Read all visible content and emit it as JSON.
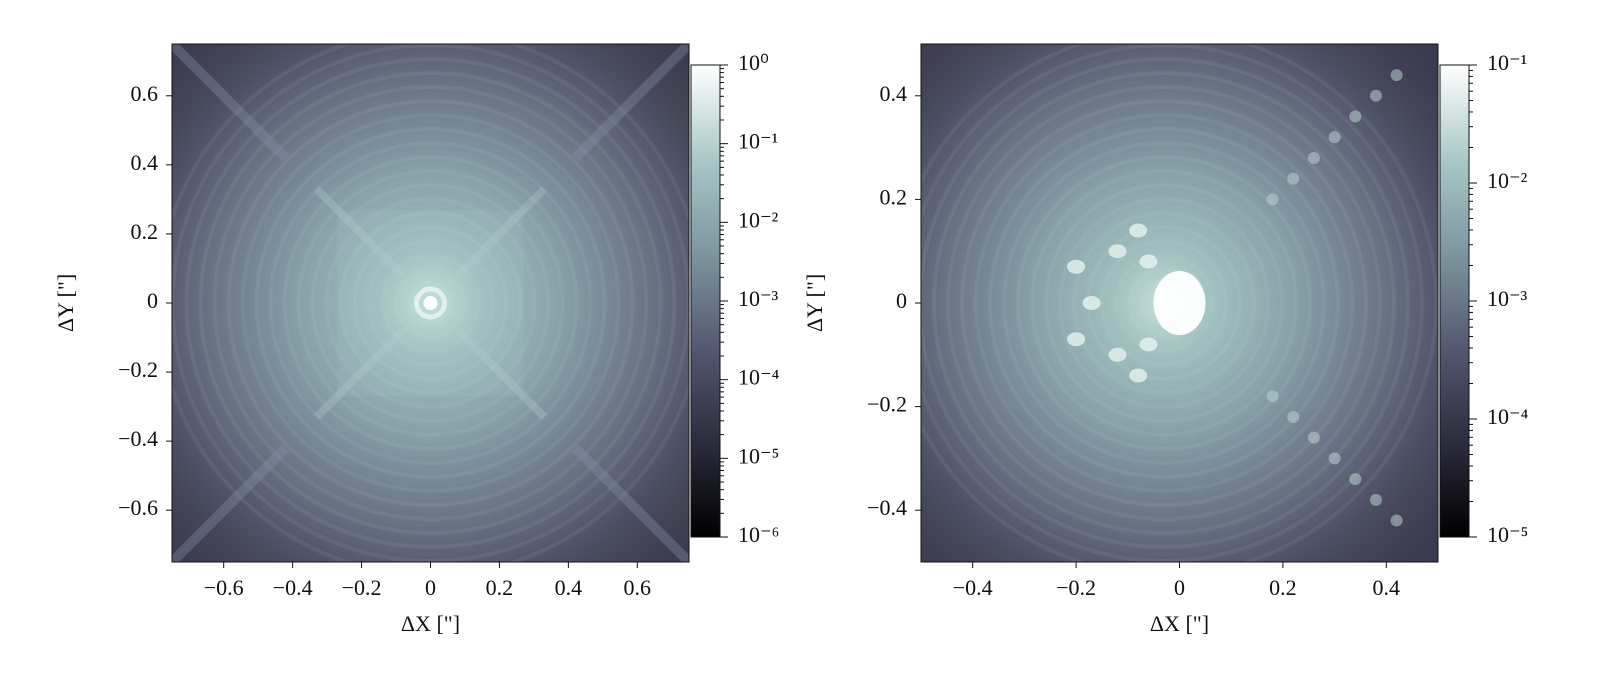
{
  "chart_data": [
    {
      "type": "heatmap",
      "xlabel": "ΔX [\"]",
      "ylabel": "ΔY [\"]",
      "cmap": "bone",
      "xlim": [
        -0.75,
        0.75
      ],
      "ylim": [
        -0.75,
        0.75
      ],
      "xticks": [
        {
          "value": -0.6,
          "label": "−0.6"
        },
        {
          "value": -0.4,
          "label": "−0.4"
        },
        {
          "value": -0.2,
          "label": "−0.2"
        },
        0,
        0.2,
        0.4,
        0.6
      ],
      "yticks": [
        {
          "value": -0.6,
          "label": "−0.6"
        },
        {
          "value": -0.4,
          "label": "−0.4"
        },
        {
          "value": -0.2,
          "label": "−0.2"
        },
        0,
        0.2,
        0.4,
        0.6
      ],
      "colorbar": {
        "scale": "log",
        "lim": [
          1e-06,
          1
        ],
        "ticks": [
          {
            "value": 1e-06,
            "label": "10⁻⁶"
          },
          {
            "value": 1e-05,
            "label": "10⁻⁵"
          },
          {
            "value": 0.0001,
            "label": "10⁻⁴"
          },
          {
            "value": 0.001,
            "label": "10⁻³"
          },
          {
            "value": 0.01,
            "label": "10⁻²"
          },
          {
            "value": 0.1,
            "label": "10⁻¹"
          },
          {
            "value": 1,
            "label": "10⁰"
          }
        ]
      }
    },
    {
      "type": "heatmap",
      "xlabel": "ΔX [\"]",
      "ylabel": "ΔY [\"]",
      "cmap": "bone",
      "xlim": [
        -0.5,
        0.5
      ],
      "ylim": [
        -0.5,
        0.5
      ],
      "xticks": [
        {
          "value": -0.4,
          "label": "−0.4"
        },
        {
          "value": -0.2,
          "label": "−0.2"
        },
        0,
        0.2,
        0.4
      ],
      "yticks": [
        {
          "value": -0.4,
          "label": "−0.4"
        },
        {
          "value": -0.2,
          "label": "−0.2"
        },
        0,
        0.2,
        0.4
      ],
      "colorbar": {
        "scale": "log",
        "lim": [
          1e-05,
          0.1
        ],
        "ticks": [
          {
            "value": 1e-05,
            "label": "10⁻⁵"
          },
          {
            "value": 0.0001,
            "label": "10⁻⁴"
          },
          {
            "value": 0.001,
            "label": "10⁻³"
          },
          {
            "value": 0.01,
            "label": "10⁻²"
          },
          {
            "value": 0.1,
            "label": "10⁻¹"
          }
        ]
      }
    }
  ]
}
